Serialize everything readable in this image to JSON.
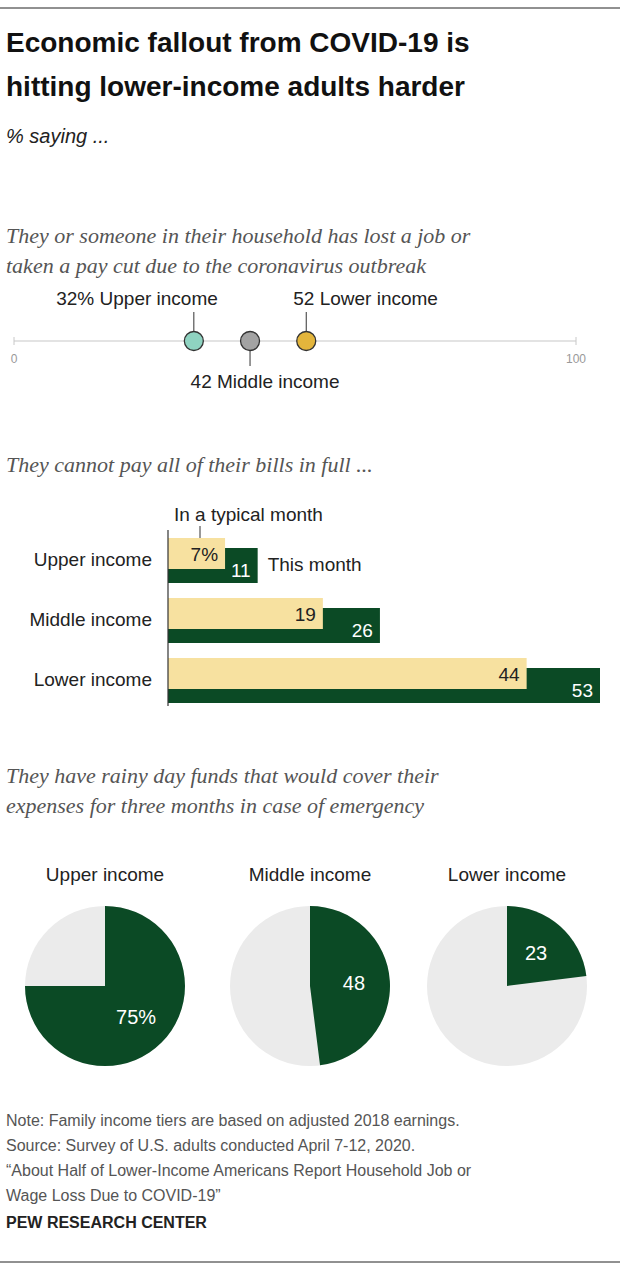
{
  "header": {
    "title": [
      "Economic fallout from COVID-19 is",
      "hitting lower-income adults harder"
    ],
    "subtitle": "% saying ..."
  },
  "chart_data": [
    {
      "type": "dot",
      "title": [
        "They or someone in their household has lost a job or",
        "taken a pay cut due to the coronavirus outbreak"
      ],
      "categories": [
        "Upper income",
        "Middle income",
        "Lower income"
      ],
      "values": [
        32,
        42,
        52
      ],
      "value_labels": [
        "32%",
        "42",
        "52"
      ],
      "colors": [
        "#8fd3c1",
        "#a3a3a3",
        "#e3b53c"
      ],
      "orientation": "horizontal",
      "xlim": [
        0,
        100
      ],
      "xticks": [
        0,
        100
      ],
      "tick_labels": "x",
      "data_labels": true
    },
    {
      "type": "bar",
      "title": [
        "They cannot pay all of their bills in full ..."
      ],
      "categories": [
        "Upper income",
        "Middle income",
        "Lower income"
      ],
      "series": [
        {
          "name": "In a typical month",
          "color": "#f7e1a0",
          "values": [
            7,
            19,
            44
          ],
          "value_labels": [
            "7%",
            "19",
            "44"
          ]
        },
        {
          "name": "This month",
          "color": "#0b4a25",
          "values": [
            11,
            26,
            53
          ]
        }
      ],
      "orientation": "horizontal",
      "xlim": [
        0,
        53
      ],
      "tick_labels": false,
      "data_labels": true
    },
    {
      "type": "pie",
      "title": [
        "They have rainy day funds that would cover their",
        "expenses for three months in case of emergency"
      ],
      "categories": [
        "Upper income",
        "Middle income",
        "Lower income"
      ],
      "values": [
        75,
        48,
        23
      ],
      "value_labels": [
        "75%",
        "48",
        "23"
      ],
      "color": "#0b4a25",
      "data_labels": true
    }
  ],
  "footer": {
    "notes": [
      "Note: Family income tiers are based on adjusted 2018 earnings.",
      "Source: Survey of U.S. adults conducted April 7-12, 2020.",
      "“About Half of Lower-Income Americans Report Household Job or",
      "Wage Loss Due to COVID-19”"
    ],
    "credit": "PEW RESEARCH CENTER"
  }
}
